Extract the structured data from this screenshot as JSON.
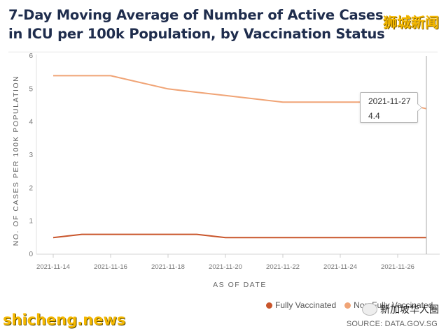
{
  "chart_data": {
    "type": "line",
    "title": "7-Day Moving Average of Number of Active Cases in ICU per 100k Population, by Vaccination Status",
    "xlabel": "AS OF DATE",
    "ylabel": "NO. OF CASES PER 100K POPULATION",
    "ylim": [
      0,
      6
    ],
    "yticks": [
      "0",
      "1",
      "2",
      "3",
      "4",
      "5",
      "6"
    ],
    "x": [
      "2021-11-14",
      "2021-11-15",
      "2021-11-16",
      "2021-11-17",
      "2021-11-18",
      "2021-11-19",
      "2021-11-20",
      "2021-11-21",
      "2021-11-22",
      "2021-11-23",
      "2021-11-24",
      "2021-11-25",
      "2021-11-26",
      "2021-11-27"
    ],
    "xticks": [
      "2021-11-14",
      "2021-11-16",
      "2021-11-18",
      "2021-11-20",
      "2021-11-22",
      "2021-11-24",
      "2021-11-26"
    ],
    "series": [
      {
        "name": "Fully Vaccinated",
        "color": "#c9562c",
        "values": [
          0.5,
          0.6,
          0.6,
          0.6,
          0.6,
          0.6,
          0.5,
          0.5,
          0.5,
          0.5,
          0.5,
          0.5,
          0.5,
          0.5
        ]
      },
      {
        "name": "Non-Fully Vaccinated",
        "color": "#f0a476",
        "values": [
          5.4,
          5.4,
          5.4,
          5.2,
          5.0,
          4.9,
          4.8,
          4.7,
          4.6,
          4.6,
          4.6,
          4.6,
          4.6,
          4.4
        ]
      }
    ],
    "legend": "bottom-right",
    "tooltip": {
      "date": "2021-11-27",
      "value": "4.4"
    },
    "gridlines": false
  },
  "legend_colors": {
    "fully": "#c9562c",
    "nonfully": "#f0a476"
  },
  "source": "SOURCE: DATA.GOV.SG",
  "watermarks": {
    "top_right": "狮城新闻",
    "bottom_left": "shicheng.news",
    "bottom_right": "新加坡华人圈"
  }
}
